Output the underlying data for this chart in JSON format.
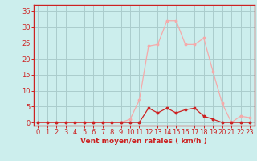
{
  "hours": [
    0,
    1,
    2,
    3,
    4,
    5,
    6,
    7,
    8,
    9,
    10,
    11,
    12,
    13,
    14,
    15,
    16,
    17,
    18,
    19,
    20,
    21,
    22,
    23
  ],
  "rafales": [
    0,
    0,
    0,
    0,
    0,
    0,
    0,
    0,
    0,
    0,
    1,
    7,
    24,
    24.5,
    32,
    32,
    24.5,
    24.5,
    26.5,
    16,
    6,
    0,
    2,
    1.5
  ],
  "vent_moyen": [
    0,
    0,
    0,
    0,
    0,
    0,
    0,
    0,
    0,
    0,
    0,
    0,
    4.5,
    3,
    4.5,
    3,
    4,
    4.5,
    2,
    1,
    0,
    0,
    0,
    0
  ],
  "bg_color": "#cceeed",
  "grid_color": "#aacccc",
  "line_color_rafales": "#f5aaaa",
  "line_color_vent": "#cc2222",
  "ylabel_ticks": [
    0,
    5,
    10,
    15,
    20,
    25,
    30,
    35
  ],
  "xlabel": "Vent moyen/en rafales ( km/h )",
  "ylim": [
    -1,
    37
  ],
  "xlim": [
    -0.5,
    23.5
  ],
  "xlabel_fontsize": 6.5,
  "tick_fontsize": 6,
  "axis_color": "#cc2222"
}
